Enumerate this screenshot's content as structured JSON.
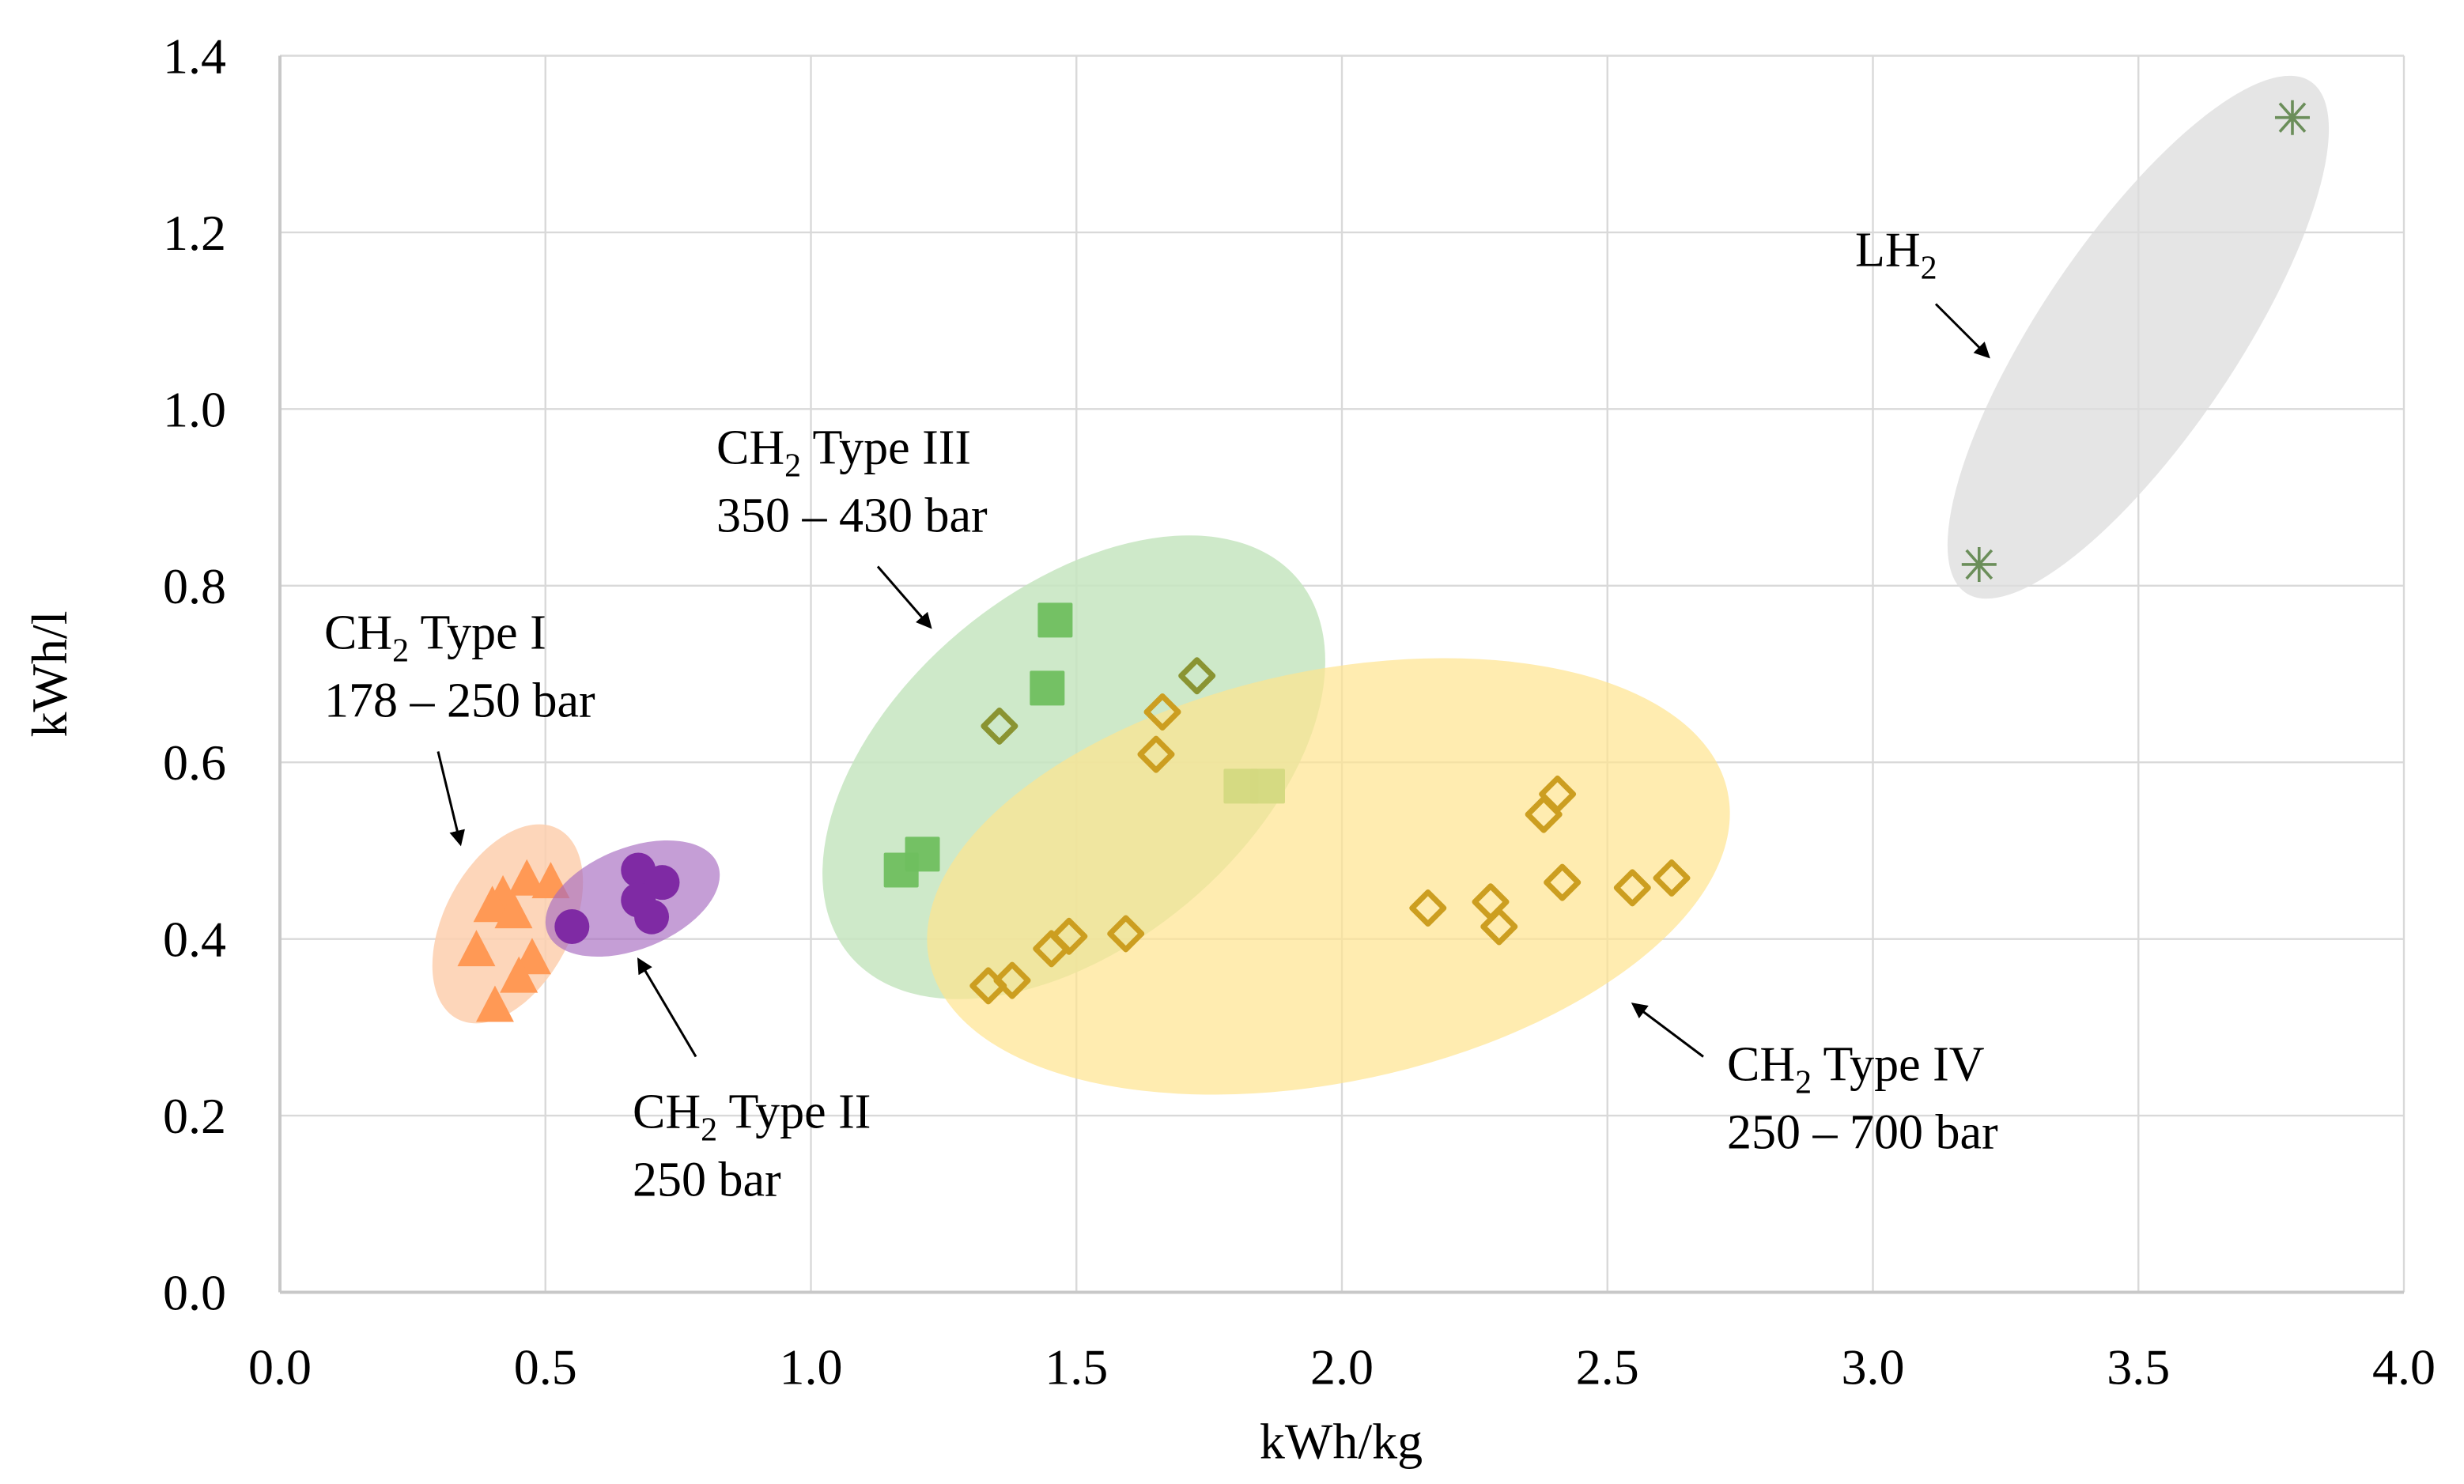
{
  "chart_data": {
    "type": "scatter",
    "title": "",
    "xlabel": "kWh/kg",
    "ylabel": "kWh/l",
    "xlim": [
      0,
      4.0
    ],
    "ylim": [
      0,
      1.4
    ],
    "grid": true,
    "x_ticks": [
      "0.0",
      "0.5",
      "1.0",
      "1.5",
      "2.0",
      "2.5",
      "3.0",
      "3.5",
      "4.0"
    ],
    "y_ticks": [
      "0.0",
      "0.2",
      "0.4",
      "0.6",
      "0.8",
      "1.0",
      "1.2",
      "1.4"
    ],
    "series": [
      {
        "name": "CH2 Type I",
        "marker": "triangle",
        "color": "#ff9955",
        "points": [
          [
            0.465,
            0.467
          ],
          [
            0.51,
            0.464
          ],
          [
            0.42,
            0.449
          ],
          [
            0.4,
            0.437
          ],
          [
            0.44,
            0.43
          ],
          [
            0.37,
            0.387
          ],
          [
            0.475,
            0.378
          ],
          [
            0.45,
            0.357
          ],
          [
            0.405,
            0.324
          ]
        ]
      },
      {
        "name": "CH2 Type II",
        "marker": "circle",
        "color": "#7f2aa4",
        "points": [
          [
            0.55,
            0.414
          ],
          [
            0.675,
            0.478
          ],
          [
            0.72,
            0.464
          ],
          [
            0.675,
            0.444
          ],
          [
            0.7,
            0.425
          ]
        ]
      },
      {
        "name": "CH2 Type III",
        "marker": "square",
        "color": "#6fbf5f",
        "points": [
          [
            1.46,
            0.761
          ],
          [
            1.445,
            0.684
          ],
          [
            1.21,
            0.496
          ],
          [
            1.17,
            0.478
          ],
          [
            1.81,
            0.573
          ],
          [
            1.86,
            0.573
          ]
        ]
      },
      {
        "name": "CH2 Type III (diamond)",
        "marker": "diamond",
        "color": "#8a9432",
        "points": [
          [
            1.355,
            0.641
          ],
          [
            1.727,
            0.698
          ]
        ]
      },
      {
        "name": "CH2 Type IV",
        "marker": "diamond",
        "color": "#cc9e20",
        "points": [
          [
            1.662,
            0.657
          ],
          [
            1.65,
            0.609
          ],
          [
            1.334,
            0.347
          ],
          [
            1.379,
            0.353
          ],
          [
            1.453,
            0.389
          ],
          [
            1.486,
            0.403
          ],
          [
            1.593,
            0.406
          ],
          [
            2.162,
            0.435
          ],
          [
            2.28,
            0.442
          ],
          [
            2.296,
            0.414
          ],
          [
            2.38,
            0.541
          ],
          [
            2.406,
            0.564
          ],
          [
            2.415,
            0.464
          ],
          [
            2.547,
            0.458
          ],
          [
            2.621,
            0.469
          ]
        ]
      },
      {
        "name": "LH2",
        "marker": "star",
        "color": "#6b8e5a",
        "points": [
          [
            3.79,
            1.33
          ],
          [
            3.2,
            0.824
          ]
        ]
      }
    ],
    "annotations": [
      {
        "id": "type1",
        "main": "CH",
        "sub": "2",
        "rest": " Type I",
        "line2": "178 – 250 bar"
      },
      {
        "id": "type2",
        "main": "CH",
        "sub": "2",
        "rest": " Type II",
        "line2": "250 bar"
      },
      {
        "id": "type3",
        "main": "CH",
        "sub": "2",
        "rest": " Type III",
        "line2": "350 – 430 bar"
      },
      {
        "id": "type4",
        "main": "CH",
        "sub": "2",
        "rest": " Type IV",
        "line2": "250 – 700 bar"
      },
      {
        "id": "lh2",
        "main": "LH",
        "sub": "2",
        "rest": "",
        "line2": ""
      }
    ]
  }
}
